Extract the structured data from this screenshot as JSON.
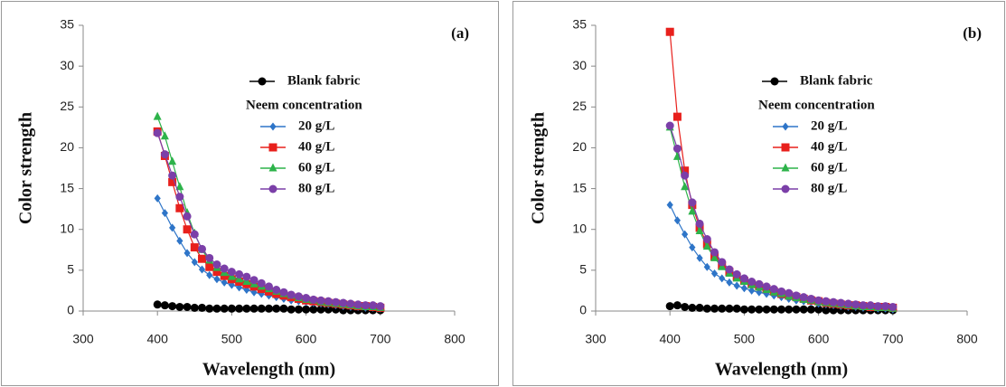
{
  "chart_data": [
    {
      "type": "line",
      "panel_label": "(a)",
      "xlabel": "Wavelength (nm)",
      "ylabel": "Color strength",
      "legend_title": "Neem concentration",
      "xlim": [
        300,
        800
      ],
      "ylim": [
        0,
        35
      ],
      "xticks": [
        300,
        400,
        500,
        600,
        700,
        800
      ],
      "yticks": [
        0,
        5,
        10,
        15,
        20,
        25,
        30,
        35
      ],
      "x": [
        400,
        410,
        420,
        430,
        440,
        450,
        460,
        470,
        480,
        490,
        500,
        510,
        520,
        530,
        540,
        550,
        560,
        570,
        580,
        590,
        600,
        610,
        620,
        630,
        640,
        650,
        660,
        670,
        680,
        690,
        700
      ],
      "series": [
        {
          "name": "Blank fabric",
          "color": "#000000",
          "marker": "circle",
          "values": [
            0.8,
            0.7,
            0.6,
            0.5,
            0.5,
            0.4,
            0.4,
            0.3,
            0.3,
            0.3,
            0.3,
            0.3,
            0.3,
            0.3,
            0.3,
            0.3,
            0.3,
            0.3,
            0.2,
            0.2,
            0.2,
            0.2,
            0.2,
            0.2,
            0.2,
            0.1,
            0.1,
            0.1,
            0.1,
            0.1,
            0.1
          ]
        },
        {
          "name": "20 g/L",
          "color": "#2e75c8",
          "marker": "diamond",
          "values": [
            13.8,
            12,
            10.2,
            8.6,
            7.1,
            6,
            5.1,
            4.4,
            3.9,
            3.5,
            3.2,
            2.9,
            2.6,
            2.3,
            2.1,
            1.9,
            1.7,
            1.5,
            1.3,
            1.2,
            1.1,
            1.0,
            0.9,
            0.8,
            0.7,
            0.6,
            0.5,
            0.5,
            0.4,
            0.4,
            0.3
          ]
        },
        {
          "name": "40 g/L",
          "color": "#e8201c",
          "marker": "square",
          "values": [
            22,
            19,
            15.8,
            12.6,
            10,
            7.8,
            6.4,
            5.4,
            4.8,
            4.3,
            3.9,
            3.6,
            3.3,
            3,
            2.7,
            2.4,
            2.1,
            1.9,
            1.7,
            1.5,
            1.3,
            1.2,
            1.1,
            1,
            0.9,
            0.8,
            0.7,
            0.6,
            0.6,
            0.5,
            0.4
          ]
        },
        {
          "name": "60 g/L",
          "color": "#2db34a",
          "marker": "triangle",
          "values": [
            23.8,
            21.4,
            18.3,
            15.2,
            12,
            9.5,
            7.5,
            6.2,
            5.3,
            4.7,
            4.2,
            3.9,
            3.6,
            3.3,
            3,
            2.7,
            2.4,
            2.1,
            1.9,
            1.6,
            1.4,
            1.3,
            1.1,
            1,
            0.9,
            0.8,
            0.7,
            0.6,
            0.5,
            0.5,
            0.4
          ]
        },
        {
          "name": "80 g/L",
          "color": "#7b3fa8",
          "marker": "circle",
          "values": [
            21.8,
            19.2,
            16.6,
            14,
            11.6,
            9.4,
            7.6,
            6.5,
            5.7,
            5.2,
            4.8,
            4.5,
            4.2,
            3.8,
            3.4,
            3,
            2.6,
            2.3,
            2,
            1.8,
            1.6,
            1.4,
            1.3,
            1.2,
            1.1,
            1,
            0.9,
            0.8,
            0.7,
            0.7,
            0.6
          ]
        }
      ]
    },
    {
      "type": "line",
      "panel_label": "(b)",
      "xlabel": "Wavelength (nm)",
      "ylabel": "Color strength",
      "legend_title": "Neem concentration",
      "xlim": [
        300,
        800
      ],
      "ylim": [
        0,
        35
      ],
      "xticks": [
        300,
        400,
        500,
        600,
        700,
        800
      ],
      "yticks": [
        0,
        5,
        10,
        15,
        20,
        25,
        30,
        35
      ],
      "x": [
        400,
        410,
        420,
        430,
        440,
        450,
        460,
        470,
        480,
        490,
        500,
        510,
        520,
        530,
        540,
        550,
        560,
        570,
        580,
        590,
        600,
        610,
        620,
        630,
        640,
        650,
        660,
        670,
        680,
        690,
        700
      ],
      "series": [
        {
          "name": "Blank fabric",
          "color": "#000000",
          "marker": "circle",
          "values": [
            0.6,
            0.7,
            0.5,
            0.4,
            0.4,
            0.3,
            0.3,
            0.3,
            0.3,
            0.3,
            0.2,
            0.2,
            0.2,
            0.2,
            0.2,
            0.2,
            0.2,
            0.2,
            0.2,
            0.2,
            0.2,
            0.1,
            0.1,
            0.1,
            0.1,
            0.1,
            0.1,
            0.1,
            0.1,
            0.1,
            0.1
          ]
        },
        {
          "name": "20 g/L",
          "color": "#2e75c8",
          "marker": "diamond",
          "values": [
            13,
            11.1,
            9.4,
            7.8,
            6.5,
            5.4,
            4.6,
            4,
            3.5,
            3.1,
            2.8,
            2.5,
            2.3,
            2.1,
            1.9,
            1.7,
            1.5,
            1.3,
            1.2,
            1.1,
            0.9,
            0.8,
            0.7,
            0.6,
            0.5,
            0.5,
            0.4,
            0.4,
            0.3,
            0.3,
            0.2
          ]
        },
        {
          "name": "40 g/L",
          "color": "#e8201c",
          "marker": "square",
          "values": [
            34.2,
            23.8,
            17.2,
            13,
            10.2,
            8.2,
            6.7,
            5.6,
            4.8,
            4.2,
            3.7,
            3.3,
            3,
            2.7,
            2.4,
            2.1,
            1.9,
            1.7,
            1.5,
            1.3,
            1.2,
            1,
            0.9,
            0.8,
            0.7,
            0.7,
            0.6,
            0.5,
            0.5,
            0.5,
            0.4
          ]
        },
        {
          "name": "60 g/L",
          "color": "#2db34a",
          "marker": "triangle",
          "values": [
            22.5,
            18.9,
            15.2,
            12.2,
            9.8,
            7.9,
            6.5,
            5.4,
            4.6,
            4,
            3.6,
            3.2,
            2.9,
            2.6,
            2.3,
            2.1,
            1.8,
            1.6,
            1.4,
            1.3,
            1.1,
            1,
            0.9,
            0.8,
            0.7,
            0.6,
            0.5,
            0.5,
            0.4,
            0.4,
            0.3
          ]
        },
        {
          "name": "80 g/L",
          "color": "#7b3fa8",
          "marker": "circle",
          "values": [
            22.7,
            19.9,
            16.6,
            13.3,
            10.7,
            8.8,
            7.2,
            6,
            5.1,
            4.5,
            4,
            3.6,
            3.3,
            3,
            2.7,
            2.4,
            2.2,
            1.9,
            1.7,
            1.5,
            1.3,
            1.2,
            1.1,
            1,
            0.9,
            0.8,
            0.7,
            0.7,
            0.6,
            0.6,
            0.5
          ]
        }
      ]
    }
  ]
}
